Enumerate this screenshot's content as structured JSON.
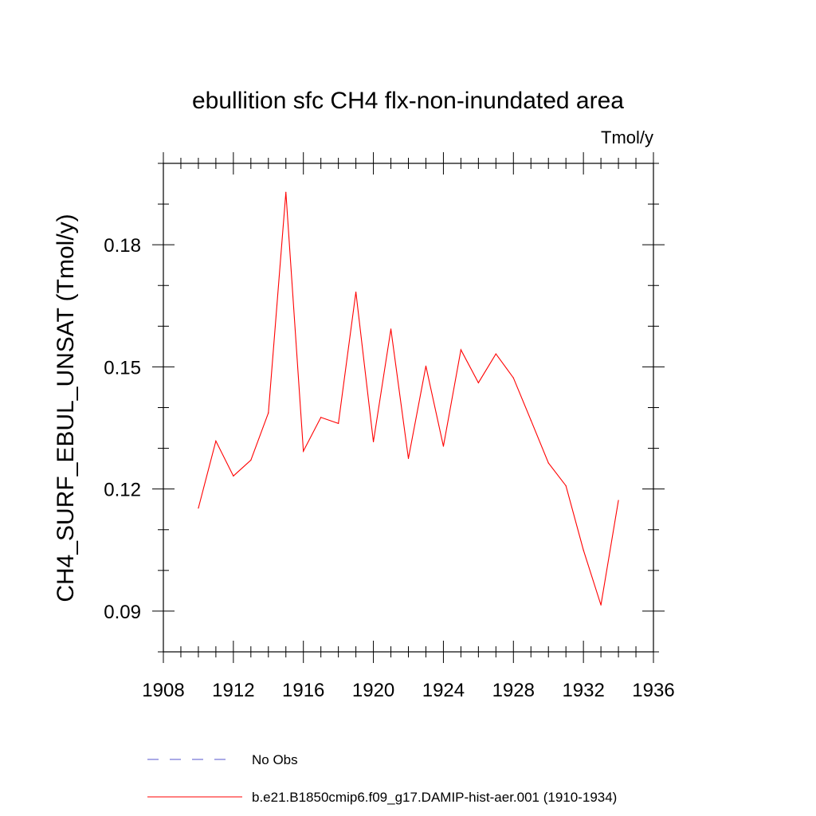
{
  "chart_data": {
    "type": "line",
    "title": "ebullition sfc CH4 flx-non-inundated area",
    "units_label": "Tmol/y",
    "ylabel": "CH4_SURF_EBUL_UNSAT  (Tmol/y)",
    "xlabel": "",
    "xlim": [
      1908,
      1936
    ],
    "ylim": [
      0.08,
      0.2
    ],
    "xticks": [
      1908,
      1912,
      1916,
      1920,
      1924,
      1928,
      1932,
      1936
    ],
    "yticks": [
      0.09,
      0.12,
      0.15,
      0.18
    ],
    "ytick_labels": [
      "0.09",
      "0.12",
      "0.15",
      "0.18"
    ],
    "series": [
      {
        "name": "b.e21.B1850cmip6.f09_g17.DAMIP-hist-aer.001 (1910-1934)",
        "color": "#ff0000",
        "x": [
          1910,
          1911,
          1912,
          1913,
          1914,
          1915,
          1916,
          1917,
          1918,
          1919,
          1920,
          1921,
          1922,
          1923,
          1924,
          1925,
          1926,
          1927,
          1928,
          1929,
          1930,
          1931,
          1932,
          1933,
          1934
        ],
        "y": [
          0.1153,
          0.1318,
          0.1232,
          0.1271,
          0.1387,
          0.1929,
          0.1293,
          0.1376,
          0.1361,
          0.1684,
          0.1316,
          0.1593,
          0.1275,
          0.1502,
          0.1305,
          0.1542,
          0.1461,
          0.1532,
          0.1473,
          0.1369,
          0.1264,
          0.1208,
          0.105,
          0.0915,
          0.1172
        ]
      }
    ],
    "legend": [
      {
        "label": "No Obs",
        "color": "#5555cc",
        "style": "dashed"
      },
      {
        "label": "b.e21.B1850cmip6.f09_g17.DAMIP-hist-aer.001 (1910-1934)",
        "color": "#ff0000",
        "style": "solid"
      }
    ]
  }
}
